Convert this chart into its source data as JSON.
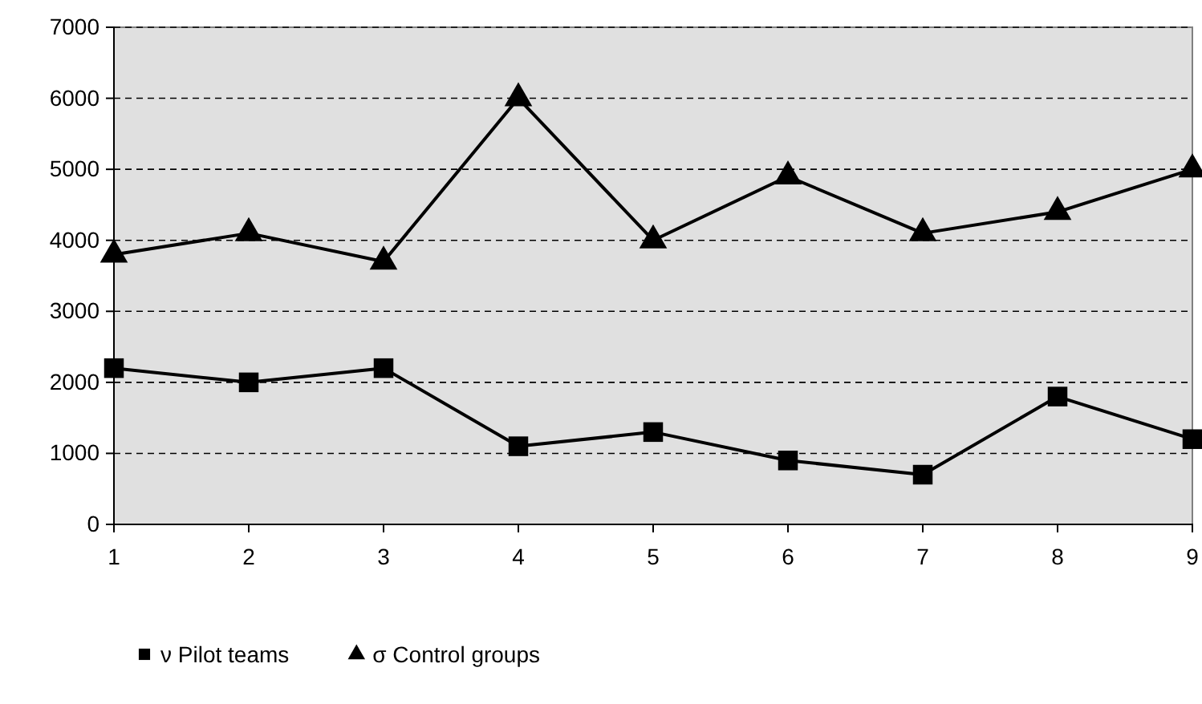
{
  "chart_data": {
    "type": "line",
    "x": [
      1,
      2,
      3,
      4,
      5,
      6,
      7,
      8,
      9
    ],
    "xlim": [
      1,
      9
    ],
    "xticks": [
      1,
      2,
      3,
      4,
      5,
      6,
      7,
      8,
      9
    ],
    "ylim": [
      0,
      7000
    ],
    "yticks": [
      0,
      1000,
      2000,
      3000,
      4000,
      5000,
      6000,
      7000
    ],
    "grid": "y",
    "legend": "bottom",
    "line_style": "solid",
    "series": [
      {
        "name": "ν Pilot teams",
        "color": "#000000",
        "marker": "square",
        "values": [
          2200,
          2000,
          2200,
          1100,
          1300,
          900,
          700,
          1800,
          1200
        ]
      },
      {
        "name": "σ Control groups",
        "color": "#000000",
        "marker": "triangle",
        "values": [
          3800,
          4100,
          3700,
          6000,
          4000,
          4900,
          4100,
          4400,
          5000
        ]
      }
    ]
  }
}
